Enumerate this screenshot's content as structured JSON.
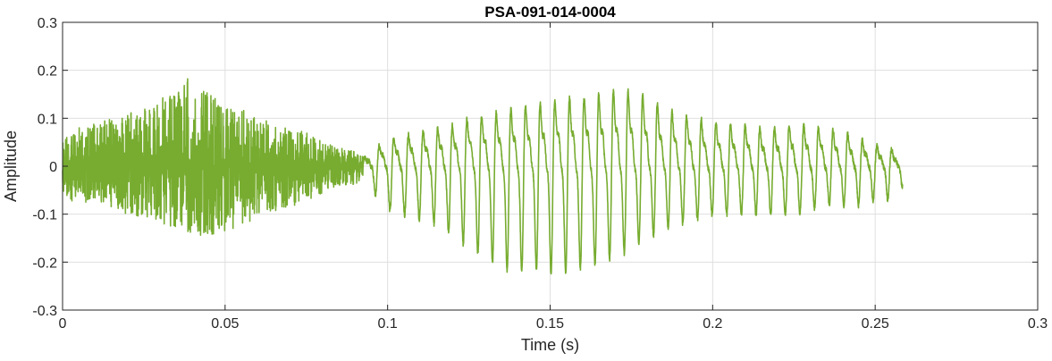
{
  "chart_data": {
    "type": "line",
    "title": "PSA-091-014-0004",
    "xlabel": "Time (s)",
    "ylabel": "Amplitude",
    "xlim": [
      0,
      0.3
    ],
    "ylim": [
      -0.3,
      0.3
    ],
    "x_ticks": [
      0,
      0.05,
      0.1,
      0.15,
      0.2,
      0.25,
      0.3
    ],
    "x_tick_labels": [
      "0",
      "0.05",
      "0.1",
      "0.15",
      "0.2",
      "0.25",
      "0.3"
    ],
    "y_ticks": [
      -0.3,
      -0.2,
      -0.1,
      0,
      0.1,
      0.2,
      0.3
    ],
    "y_tick_labels": [
      "-0.3",
      "-0.2",
      "-0.1",
      "0",
      "0.1",
      "0.2",
      "0.3"
    ],
    "grid": true,
    "legend": "none",
    "line_color": "#77ac30",
    "series": [
      {
        "x": [
          0,
          0.005,
          0.01,
          0.015,
          0.02,
          0.025,
          0.03,
          0.035,
          0.04,
          0.045,
          0.05,
          0.055,
          0.06,
          0.065,
          0.07,
          0.075,
          0.08,
          0.085,
          0.09,
          0.0925,
          0.095,
          0.1,
          0.105,
          0.11,
          0.115,
          0.12,
          0.125,
          0.13,
          0.135,
          0.14,
          0.145,
          0.15,
          0.155,
          0.16,
          0.165,
          0.17,
          0.175,
          0.18,
          0.185,
          0.19,
          0.195,
          0.2,
          0.205,
          0.21,
          0.215,
          0.22,
          0.225,
          0.23,
          0.235,
          0.24,
          0.245,
          0.25,
          0.255,
          0.2585
        ],
        "upper": [
          0.06,
          0.08,
          0.09,
          0.1,
          0.11,
          0.12,
          0.14,
          0.16,
          0.2,
          0.15,
          0.13,
          0.12,
          0.1,
          0.09,
          0.08,
          0.07,
          0.05,
          0.04,
          0.03,
          0.02,
          0.04,
          0.08,
          0.09,
          0.1,
          0.11,
          0.12,
          0.14,
          0.15,
          0.16,
          0.17,
          0.18,
          0.19,
          0.2,
          0.2,
          0.21,
          0.22,
          0.22,
          0.2,
          0.17,
          0.15,
          0.14,
          0.13,
          0.12,
          0.12,
          0.11,
          0.11,
          0.12,
          0.12,
          0.11,
          0.1,
          0.08,
          0.06,
          0.05,
          0.03
        ],
        "lower": [
          -0.07,
          -0.08,
          -0.08,
          -0.09,
          -0.1,
          -0.11,
          -0.12,
          -0.13,
          -0.14,
          -0.15,
          -0.14,
          -0.12,
          -0.11,
          -0.1,
          -0.09,
          -0.07,
          -0.06,
          -0.04,
          -0.04,
          -0.02,
          -0.05,
          -0.09,
          -0.1,
          -0.11,
          -0.12,
          -0.14,
          -0.17,
          -0.19,
          -0.21,
          -0.22,
          -0.21,
          -0.22,
          -0.22,
          -0.21,
          -0.2,
          -0.19,
          -0.17,
          -0.15,
          -0.13,
          -0.12,
          -0.11,
          -0.1,
          -0.1,
          -0.1,
          -0.1,
          -0.1,
          -0.1,
          -0.09,
          -0.08,
          -0.08,
          -0.08,
          -0.07,
          -0.07,
          -0.04
        ]
      }
    ]
  }
}
